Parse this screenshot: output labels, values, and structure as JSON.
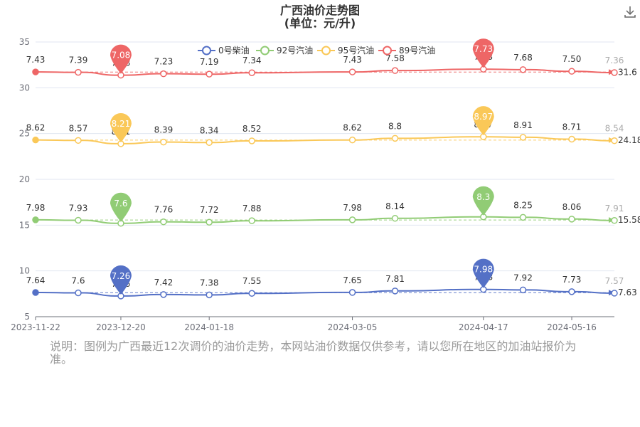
{
  "chart_data": {
    "type": "line",
    "title": "广西油价走势图",
    "subtitle": "(单位：元/升)",
    "x": [
      "2023-11-22",
      "2023-12-06",
      "2023-12-20",
      "2024-01-03",
      "2024-01-18",
      "2024-02-01",
      "2024-03-05",
      "2024-03-19",
      "2024-04-17",
      "2024-04-30",
      "2024-05-16",
      "2024-05-30"
    ],
    "x_tick_labels": [
      "2023-11-22",
      "2023-12-20",
      "2024-01-18",
      "2024-03-05",
      "2024-04-17",
      "2024-05-16"
    ],
    "y_ticks": [
      "5",
      "10",
      "15",
      "20",
      "25",
      "30",
      "35"
    ],
    "ylim": [
      5,
      35
    ],
    "series": [
      {
        "name": "0号柴油",
        "color": "#5470c6",
        "offset": 0,
        "values": [
          7.64,
          7.6,
          7.26,
          7.42,
          7.38,
          7.55,
          7.65,
          7.81,
          7.98,
          7.92,
          7.73,
          7.57
        ],
        "labels": [
          "7.64",
          "7.6",
          "7.26",
          "7.42",
          "7.38",
          "7.55",
          "7.65",
          "7.81",
          "7.98",
          "7.92",
          "7.73",
          "7.57"
        ],
        "min_label": "7.26",
        "max_label": "7.98",
        "end_label": "7.63"
      },
      {
        "name": "92号汽油",
        "color": "#91cc75",
        "offset": 7.6,
        "values": [
          7.98,
          7.93,
          7.6,
          7.76,
          7.72,
          7.88,
          7.98,
          8.14,
          8.3,
          8.25,
          8.06,
          7.91
        ],
        "labels": [
          "7.98",
          "7.93",
          "7.6",
          "7.76",
          "7.72",
          "7.88",
          "7.98",
          "8.14",
          "8.3",
          "8.25",
          "8.06",
          "7.91"
        ],
        "min_label": "7.6",
        "max_label": "8.3",
        "end_label": "15.58"
      },
      {
        "name": "95号汽油",
        "color": "#fac858",
        "offset": 15.68,
        "values": [
          8.62,
          8.57,
          8.21,
          8.39,
          8.34,
          8.52,
          8.62,
          8.8,
          8.97,
          8.91,
          8.71,
          8.54
        ],
        "labels": [
          "8.62",
          "8.57",
          "8.21",
          "8.39",
          "8.34",
          "8.52",
          "8.62",
          "8.8",
          "8.97",
          "8.91",
          "8.71",
          "8.54"
        ],
        "min_label": "8.21",
        "max_label": "8.97",
        "end_label": "24.18"
      },
      {
        "name": "89号汽油",
        "color": "#ee6666",
        "offset": 24.3,
        "values": [
          7.43,
          7.39,
          7.08,
          7.23,
          7.19,
          7.34,
          7.43,
          7.58,
          7.73,
          7.68,
          7.5,
          7.36
        ],
        "labels": [
          "7.43",
          "7.39",
          "7.08",
          "7.23",
          "7.19",
          "7.34",
          "7.43",
          "7.58",
          "7.73",
          "7.68",
          "7.50",
          "7.36"
        ],
        "min_label": "7.08",
        "max_label": "7.73",
        "end_label": "31.6"
      }
    ],
    "legend_position": "top-right",
    "grid": "horizontal"
  },
  "note": "说明：图例为广西最近12次调价的油价走势，本网站油价数据仅供参考，请以您所在地区的加油站报价为准。",
  "icons": {
    "download": "download-icon"
  }
}
